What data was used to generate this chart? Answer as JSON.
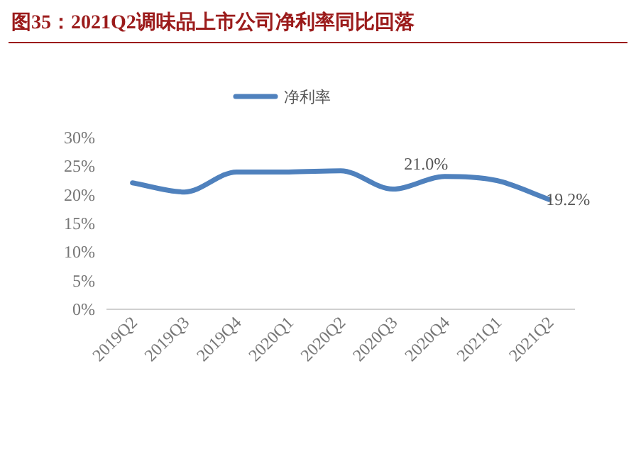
{
  "chart_data": {
    "type": "line",
    "title": "图35：2021Q2调味品上市公司净利率同比回落",
    "categories": [
      "2019Q2",
      "2019Q3",
      "2019Q4",
      "2020Q1",
      "2020Q2",
      "2020Q3",
      "2020Q4",
      "2021Q1",
      "2021Q2"
    ],
    "series": [
      {
        "name": "净利率",
        "color": "#4f81bd",
        "values": [
          22.1,
          20.5,
          24.0,
          24.0,
          24.2,
          21.0,
          23.2,
          22.5,
          19.2
        ],
        "value_labels": [
          null,
          null,
          null,
          null,
          null,
          "21.0%",
          null,
          null,
          "19.2%"
        ]
      }
    ],
    "ylim": [
      0,
      30
    ],
    "yticks": [
      {
        "value": 0,
        "label": "0%"
      },
      {
        "value": 5,
        "label": "5%"
      },
      {
        "value": 10,
        "label": "10%"
      },
      {
        "value": 15,
        "label": "15%"
      },
      {
        "value": 20,
        "label": "20%"
      },
      {
        "value": 25,
        "label": "25%"
      },
      {
        "value": 30,
        "label": "30%"
      }
    ],
    "legend": "top",
    "grid": false,
    "marker": "none",
    "line_style": "solid"
  }
}
